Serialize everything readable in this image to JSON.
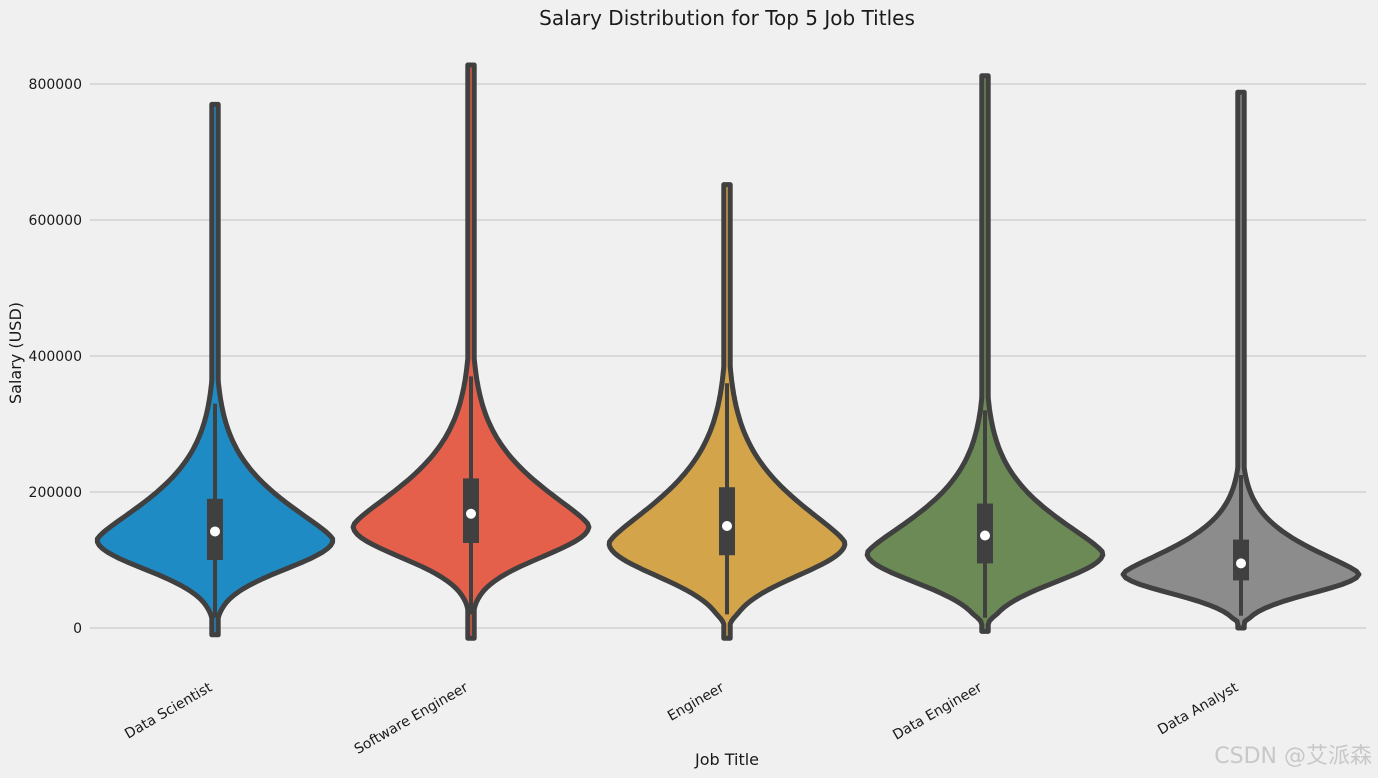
{
  "chart_data": {
    "type": "violin",
    "title": "Salary Distribution for Top 5 Job Titles",
    "xlabel": "Job Title",
    "ylabel": "Salary (USD)",
    "ylim": [
      -20000,
      840000
    ],
    "yticks": [
      0,
      200000,
      400000,
      600000,
      800000
    ],
    "grid": "horizontal",
    "categories": [
      "Data Scientist",
      "Software Engineer",
      "Engineer",
      "Data Engineer",
      "Data Analyst"
    ],
    "series": [
      {
        "color": "#1f8bc4",
        "min": -10000,
        "q1": 100000,
        "median": 142000,
        "q3": 190000,
        "whisker_low": 15000,
        "whisker_high": 330000,
        "max": 770000,
        "density_peak": 130000
      },
      {
        "color": "#e5604a",
        "min": -15000,
        "q1": 125000,
        "median": 168000,
        "q3": 220000,
        "whisker_low": 20000,
        "whisker_high": 370000,
        "max": 828000,
        "density_peak": 150000
      },
      {
        "color": "#d3a449",
        "min": -15000,
        "q1": 107000,
        "median": 150000,
        "q3": 207000,
        "whisker_low": 20000,
        "whisker_high": 360000,
        "max": 652000,
        "density_peak": 125000
      },
      {
        "color": "#6b8a55",
        "min": -5000,
        "q1": 95000,
        "median": 136000,
        "q3": 183000,
        "whisker_low": 15000,
        "whisker_high": 320000,
        "max": 812000,
        "density_peak": 110000
      },
      {
        "color": "#8c8c8c",
        "min": 0,
        "q1": 70000,
        "median": 95000,
        "q3": 130000,
        "whisker_low": 18000,
        "whisker_high": 225000,
        "max": 788000,
        "density_peak": 80000
      }
    ]
  },
  "watermark": "CSDN @艾派森"
}
